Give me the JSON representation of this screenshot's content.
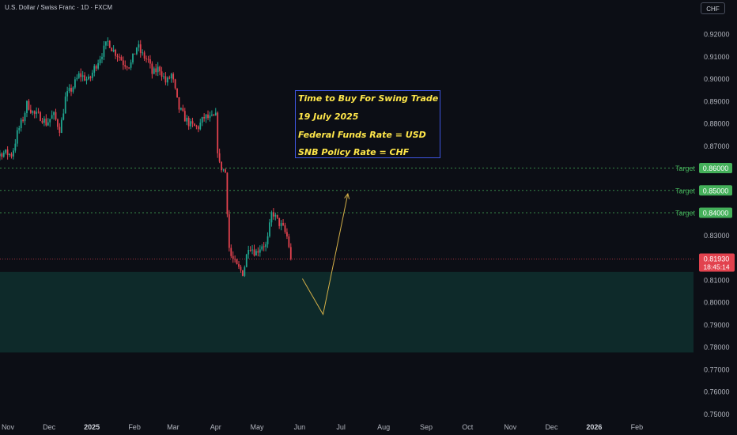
{
  "header": {
    "symbol_title": "U.S. Dollar / Swiss Franc · 1D · FXCM",
    "currency_button": "CHF"
  },
  "annotation": {
    "lines": [
      "Time to Buy For Swing Trade",
      "19 July 2025",
      "Federal Funds Rate = USD",
      "SNB Policy Rate = CHF"
    ],
    "border_color": "#3e55e0",
    "text_color": "#ffe74a"
  },
  "colors": {
    "background": "#0c0e15",
    "up": "#1fa58f",
    "down": "#e2424e",
    "target": "#44b05a",
    "zone": "#0e2a2a",
    "arrow": "#d4b048",
    "price_label": "#e2424e"
  },
  "chart_data": {
    "type": "candlestick",
    "symbol": "U.S. Dollar / Swiss Franc",
    "interval": "1D",
    "source": "FXCM",
    "ylim": [
      0.7475,
      0.9255
    ],
    "y_ticks": [
      "0.92000",
      "0.91000",
      "0.90000",
      "0.89000",
      "0.88000",
      "0.87000",
      "0.86000",
      "0.85000",
      "0.84000",
      "0.83000",
      "0.82000",
      "0.81000",
      "0.80000",
      "0.79000",
      "0.78000",
      "0.77000",
      "0.76000",
      "0.75000"
    ],
    "x_ticks": [
      {
        "label": "Nov",
        "date": "2024-11-01",
        "bold": false
      },
      {
        "label": "Dec",
        "date": "2024-12-01",
        "bold": false
      },
      {
        "label": "2025",
        "date": "2025-01-01",
        "bold": true
      },
      {
        "label": "Feb",
        "date": "2025-02-01",
        "bold": false
      },
      {
        "label": "Mar",
        "date": "2025-03-01",
        "bold": false
      },
      {
        "label": "Apr",
        "date": "2025-04-01",
        "bold": false
      },
      {
        "label": "May",
        "date": "2025-05-01",
        "bold": false
      },
      {
        "label": "Jun",
        "date": "2025-06-01",
        "bold": false
      },
      {
        "label": "Jul",
        "date": "2025-07-01",
        "bold": false
      },
      {
        "label": "Aug",
        "date": "2025-08-01",
        "bold": false
      },
      {
        "label": "Sep",
        "date": "2025-09-01",
        "bold": false
      },
      {
        "label": "Oct",
        "date": "2025-10-01",
        "bold": false
      },
      {
        "label": "Nov",
        "date": "2025-11-01",
        "bold": false
      },
      {
        "label": "Dec",
        "date": "2025-12-01",
        "bold": false
      },
      {
        "label": "2026",
        "date": "2026-01-01",
        "bold": true
      },
      {
        "label": "Feb",
        "date": "2026-02-01",
        "bold": false
      }
    ],
    "price_path": [
      [
        "2024-10-08",
        0.854
      ],
      [
        "2024-10-14",
        0.86
      ],
      [
        "2024-10-21",
        0.864
      ],
      [
        "2024-10-28",
        0.867
      ],
      [
        "2024-11-04",
        0.866
      ],
      [
        "2024-11-08",
        0.876
      ],
      [
        "2024-11-12",
        0.882
      ],
      [
        "2024-11-15",
        0.889
      ],
      [
        "2024-11-20",
        0.884
      ],
      [
        "2024-11-25",
        0.883
      ],
      [
        "2024-11-29",
        0.88
      ],
      [
        "2024-12-04",
        0.884
      ],
      [
        "2024-12-09",
        0.877
      ],
      [
        "2024-12-13",
        0.892
      ],
      [
        "2024-12-18",
        0.896
      ],
      [
        "2024-12-23",
        0.902
      ],
      [
        "2024-12-30",
        0.899
      ],
      [
        "2025-01-03",
        0.905
      ],
      [
        "2025-01-08",
        0.911
      ],
      [
        "2025-01-13",
        0.917
      ],
      [
        "2025-01-16",
        0.913
      ],
      [
        "2025-01-21",
        0.91
      ],
      [
        "2025-01-24",
        0.907
      ],
      [
        "2025-01-29",
        0.906
      ],
      [
        "2025-02-03",
        0.915
      ],
      [
        "2025-02-06",
        0.911
      ],
      [
        "2025-02-11",
        0.908
      ],
      [
        "2025-02-14",
        0.902
      ],
      [
        "2025-02-19",
        0.905
      ],
      [
        "2025-02-24",
        0.898
      ],
      [
        "2025-02-28",
        0.902
      ],
      [
        "2025-03-05",
        0.887
      ],
      [
        "2025-03-10",
        0.882
      ],
      [
        "2025-03-14",
        0.879
      ],
      [
        "2025-03-19",
        0.878
      ],
      [
        "2025-03-24",
        0.883
      ],
      [
        "2025-03-28",
        0.882
      ],
      [
        "2025-04-01",
        0.883
      ],
      [
        "2025-04-03",
        0.862
      ],
      [
        "2025-04-08",
        0.858
      ],
      [
        "2025-04-11",
        0.822
      ],
      [
        "2025-04-16",
        0.816
      ],
      [
        "2025-04-21",
        0.813
      ],
      [
        "2025-04-25",
        0.826
      ],
      [
        "2025-04-30",
        0.822
      ],
      [
        "2025-05-05",
        0.826
      ],
      [
        "2025-05-08",
        0.825
      ],
      [
        "2025-05-12",
        0.841
      ],
      [
        "2025-05-15",
        0.837
      ],
      [
        "2025-05-20",
        0.833
      ],
      [
        "2025-05-23",
        0.829
      ],
      [
        "2025-05-26",
        0.8193
      ]
    ],
    "last_price": "0.81930",
    "countdown": "18:45:14",
    "targets": [
      {
        "label": "Target",
        "price": 0.86,
        "price_label": "0.86000"
      },
      {
        "label": "Target",
        "price": 0.85,
        "price_label": "0.85000"
      },
      {
        "label": "Target",
        "price": 0.84,
        "price_label": "0.84000"
      }
    ],
    "demand_zone": {
      "from": 0.7775,
      "to": 0.8135
    },
    "projection_path": [
      [
        "2025-06-03",
        0.8105
      ],
      [
        "2025-06-18",
        0.7945
      ],
      [
        "2025-07-06",
        0.8485
      ]
    ]
  }
}
